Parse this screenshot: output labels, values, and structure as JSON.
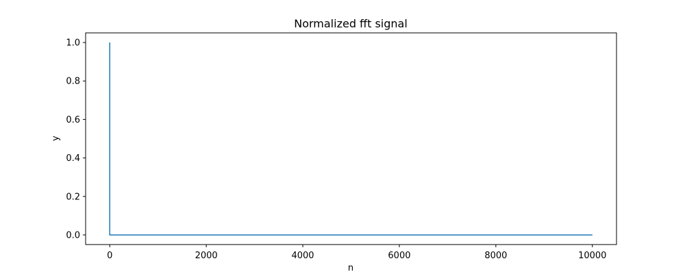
{
  "chart_data": {
    "type": "line",
    "title": "Normalized fft signal",
    "xlabel": "n",
    "ylabel": "y",
    "xlim": [
      -500,
      10500
    ],
    "ylim": [
      -0.05,
      1.05
    ],
    "xticks": [
      0,
      2000,
      4000,
      6000,
      8000,
      10000
    ],
    "yticks": [
      0.0,
      0.2,
      0.4,
      0.6,
      0.8,
      1.0
    ],
    "xtick_labels": [
      "0",
      "2000",
      "4000",
      "6000",
      "8000",
      "10000"
    ],
    "ytick_labels": [
      "0.0",
      "0.2",
      "0.4",
      "0.6",
      "0.8",
      "1.0"
    ],
    "grid": false,
    "series": [
      {
        "color": "#1f77b4",
        "x": [
          0,
          0,
          1,
          10000
        ],
        "y": [
          1.0,
          0.0,
          0.0,
          0.0
        ]
      }
    ]
  }
}
